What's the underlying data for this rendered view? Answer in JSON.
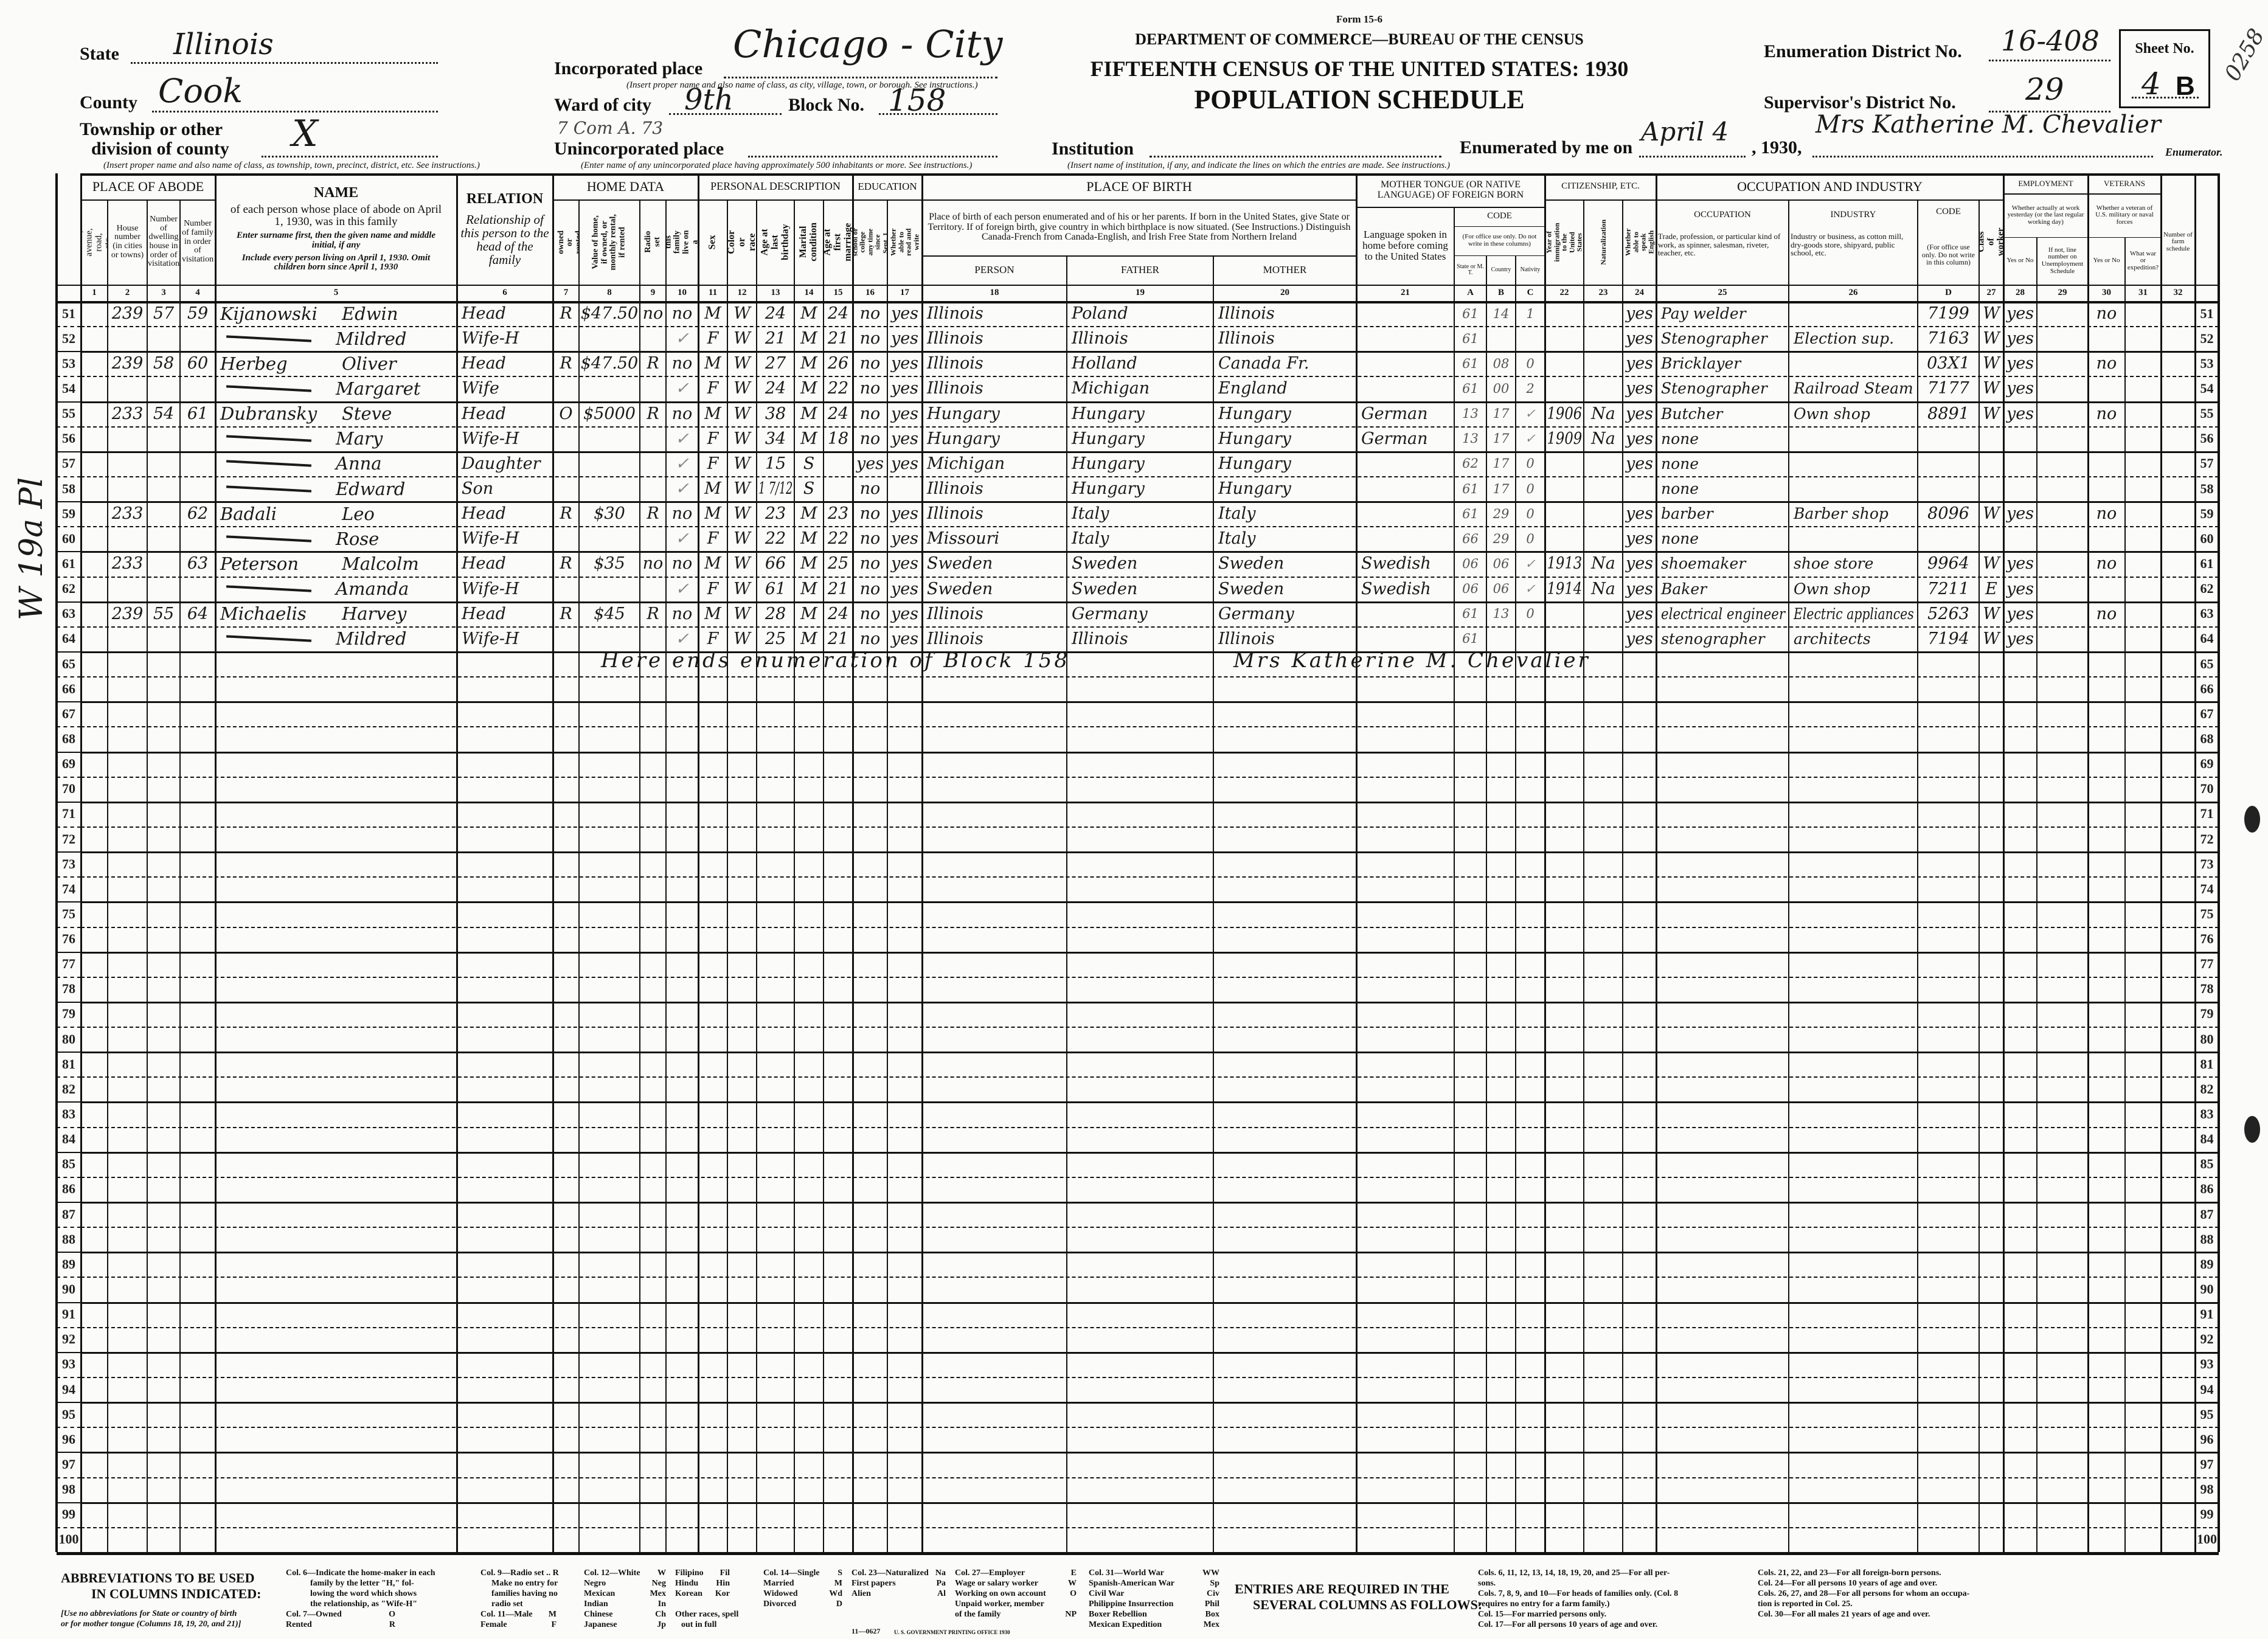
{
  "form": {
    "state_label": "State",
    "state": "Illinois",
    "county_label": "County",
    "county": "Cook",
    "township_label_1": "Township or other",
    "township_label_2": "division of county",
    "township": "X",
    "township_note": "(Insert proper name and also name of class, as township, town, precinct, district, etc. See instructions.)",
    "incorporated_label": "Incorporated place",
    "incorporated": "Chicago - City",
    "incorporated_note": "(Insert proper name and also name of class, as city, village, town, or borough. See instructions.)",
    "ward_label": "Ward of city",
    "ward": "9th",
    "block_label": "Block No.",
    "block": "158",
    "ward_annotation": "7 Com A. 73",
    "unincorporated_label": "Unincorporated place",
    "unincorporated_note": "(Enter name of any unincorporated place having approximately 500 inhabitants or more. See instructions.)",
    "institution_label": "Institution",
    "institution_note": "(Insert name of institution, if any, and indicate the lines on which the entries are made. See instructions.)",
    "form_no": "Form 15-6",
    "department": "DEPARTMENT OF COMMERCE—BUREAU OF THE CENSUS",
    "title": "FIFTEENTH CENSUS OF THE UNITED STATES: 1930",
    "subtitle": "POPULATION SCHEDULE",
    "ed_label": "Enumeration District No.",
    "ed": "16-408",
    "sd_label": "Supervisor's District No.",
    "sd": "29",
    "sheet_label": "Sheet No.",
    "sheet": "4",
    "sheet_side": "B",
    "enumerated_label": "Enumerated by me on",
    "enumerated_date": "April 4",
    "enumerated_year": ", 1930,",
    "enumerator": "Mrs Katherine M. Chevalier",
    "enumerator_label": "Enumerator.",
    "stamp": "0258",
    "margin_note": "W 19a Pl"
  },
  "header": {
    "place_of_abode": "PLACE OF ABODE",
    "c1": "Street, avenue, road, etc.",
    "c2": "House number (in cities or towns)",
    "c3": "Number of dwelling house in order of visitation",
    "c4": "Number of family in order of visitation",
    "name_title": "NAME",
    "name_desc": "of each person whose place of abode on April 1, 1930, was in this family",
    "name_note1": "Enter surname first, then the given name and middle initial, if any",
    "name_note2": "Include every person living on April 1, 1930. Omit children born since April 1, 1930",
    "relation_title": "RELATION",
    "relation_desc": "Relationship of this person to the head of the family",
    "home_data": "HOME DATA",
    "c7": "Home owned or rented",
    "c8": "Value of home, if owned, or monthly rental, if rented",
    "c9": "Radio set",
    "c10": "Does this family live on a farm?",
    "personal_description": "PERSONAL DESCRIPTION",
    "c11": "Sex",
    "c12": "Color or race",
    "c13": "Age at last birthday",
    "c14": "Marital condition",
    "c15": "Age at first marriage",
    "education": "EDUCATION",
    "c16": "Attended school or college any time since Sept. 1, 1929",
    "c17": "Whether able to read and write",
    "place_of_birth": "PLACE OF BIRTH",
    "pob_desc": "Place of birth of each person enumerated and of his or her parents. If born in the United States, give State or Territory. If of foreign birth, give country in which birthplace is now situated. (See Instructions.) Distinguish Canada-French from Canada-English, and Irish Free State from Northern Ireland",
    "person": "PERSON",
    "father": "FATHER",
    "mother": "MOTHER",
    "mother_tongue": "MOTHER TONGUE (OR NATIVE LANGUAGE) OF FOREIGN BORN",
    "c21": "Language spoken in home before coming to the United States",
    "code": "CODE",
    "code_note": "(For office use only. Do not write in these columns)",
    "A": "State or M. T.",
    "B": "Country",
    "C": "Nativity",
    "citizenship": "CITIZENSHIP, ETC.",
    "c22": "Year of immigration to the United States",
    "c23": "Naturalization",
    "c24": "Whether able to speak English",
    "occupation_industry": "OCCUPATION AND INDUSTRY",
    "c25_title": "OCCUPATION",
    "c25": "Trade, profession, or particular kind of work, as spinner, salesman, riveter, teacher, etc.",
    "c26_title": "INDUSTRY",
    "c26": "Industry or business, as cotton mill, dry-goods store, shipyard, public school, etc.",
    "D_title": "CODE",
    "D": "(For office use only. Do not write in this column)",
    "c27": "Class of worker",
    "employment": "EMPLOYMENT",
    "employment_desc": "Whether actually at work yesterday (or the last regular working day)",
    "c28": "Yes or No",
    "c29": "If not, line number on Unemployment Schedule",
    "veterans": "VETERANS",
    "veterans_desc": "Whether a veteran of U.S. military or naval forces",
    "c30": "Yes or No",
    "c31": "What war or expedition?",
    "c32": "Number of farm schedule",
    "col_numbers": {
      "c1": "1",
      "c2": "2",
      "c3": "3",
      "c4": "4",
      "c5": "5",
      "c6": "6",
      "c7": "7",
      "c8": "8",
      "c9": "9",
      "c10": "10",
      "c11": "11",
      "c12": "12",
      "c13": "13",
      "c14": "14",
      "c15": "15",
      "c16": "16",
      "c17": "17",
      "c18": "18",
      "c19": "19",
      "c20": "20",
      "c21": "21",
      "A": "A",
      "B": "B",
      "C": "C",
      "c22": "22",
      "c23": "23",
      "c24": "24",
      "c25": "25",
      "c26": "26",
      "D": "D",
      "c27": "27",
      "c28": "28",
      "c29": "29",
      "c30": "30",
      "c31": "31",
      "c32": "32"
    }
  },
  "line_numbers": [
    "51",
    "52",
    "53",
    "54",
    "55",
    "56",
    "57",
    "58",
    "59",
    "60",
    "61",
    "62",
    "63",
    "64",
    "65",
    "66",
    "67",
    "68",
    "69",
    "70",
    "71",
    "72",
    "73",
    "74",
    "75",
    "76",
    "77",
    "78",
    "79",
    "80",
    "81",
    "82",
    "83",
    "84",
    "85",
    "86",
    "87",
    "88",
    "89",
    "90",
    "91",
    "92",
    "93",
    "94",
    "95",
    "96",
    "97",
    "98",
    "99",
    "100"
  ],
  "rows": [
    {
      "c2": "239",
      "c3": "57",
      "c4": "59",
      "surname": "Kijanowski",
      "given": "Edwin",
      "c6": "Head",
      "c7": "R",
      "c8": "$47.50",
      "c9": "no",
      "c10": "no",
      "c11": "M",
      "c12": "W",
      "c13": "24",
      "c14": "M",
      "c15": "24",
      "c16": "no",
      "c17": "yes",
      "c18": "Illinois",
      "c19": "Poland",
      "c20": "Illinois",
      "A": "61",
      "B": "14",
      "C": "1",
      "c24": "yes",
      "c25": "Pay welder",
      "D": "7199",
      "c27": "W",
      "c28": "yes",
      "c30": "no"
    },
    {
      "surname": "",
      "given": "Mildred",
      "c6": "Wife-H",
      "c10": "✓",
      "c11": "F",
      "c12": "W",
      "c13": "21",
      "c14": "M",
      "c15": "21",
      "c16": "no",
      "c17": "yes",
      "c18": "Illinois",
      "c19": "Illinois",
      "c20": "Illinois",
      "A": "61",
      "c24": "yes",
      "c25": "Stenographer",
      "c26": "Election sup.",
      "D": "7163",
      "c27": "W",
      "c28": "yes"
    },
    {
      "c2": "239",
      "c3": "58",
      "c4": "60",
      "surname": "Herbeg",
      "given": "Oliver",
      "c6": "Head",
      "c7": "R",
      "c8": "$47.50",
      "c9": "R",
      "c10": "no",
      "c11": "M",
      "c12": "W",
      "c13": "27",
      "c14": "M",
      "c15": "26",
      "c16": "no",
      "c17": "yes",
      "c18": "Illinois",
      "c19": "Holland",
      "c20": "Canada Fr.",
      "A": "61",
      "B": "08",
      "C": "0",
      "c24": "yes",
      "c25": "Bricklayer",
      "D": "03X1",
      "c27": "W",
      "c28": "yes",
      "c30": "no"
    },
    {
      "surname": "",
      "given": "Margaret",
      "c6": "Wife",
      "c10": "✓",
      "c11": "F",
      "c12": "W",
      "c13": "24",
      "c14": "M",
      "c15": "22",
      "c16": "no",
      "c17": "yes",
      "c18": "Illinois",
      "c19": "Michigan",
      "c20": "England",
      "A": "61",
      "B": "00",
      "C": "2",
      "c24": "yes",
      "c25": "Stenographer",
      "c26": "Railroad Steam",
      "D": "7177",
      "c27": "W",
      "c28": "yes"
    },
    {
      "c2": "233",
      "c3": "54",
      "c4": "61",
      "surname": "Dubransky",
      "given": "Steve",
      "c6": "Head",
      "c7": "O",
      "c8": "$5000",
      "c9": "R",
      "c10": "no",
      "c11": "M",
      "c12": "W",
      "c13": "38",
      "c14": "M",
      "c15": "24",
      "c16": "no",
      "c17": "yes",
      "c18": "Hungary",
      "c19": "Hungary",
      "c20": "Hungary",
      "c21": "German",
      "A": "13",
      "B": "17",
      "C": "✓",
      "c22": "1906",
      "c23": "Na",
      "c24": "yes",
      "c25": "Butcher",
      "c26": "Own shop",
      "D": "8891",
      "c27": "W",
      "c28": "yes",
      "c30": "no"
    },
    {
      "surname": "",
      "given": "Mary",
      "c6": "Wife-H",
      "c10": "✓",
      "c11": "F",
      "c12": "W",
      "c13": "34",
      "c14": "M",
      "c15": "18",
      "c16": "no",
      "c17": "yes",
      "c18": "Hungary",
      "c19": "Hungary",
      "c20": "Hungary",
      "c21": "German",
      "A": "13",
      "B": "17",
      "C": "✓",
      "c22": "1909",
      "c23": "Na",
      "c24": "yes",
      "c25": "none"
    },
    {
      "surname": "",
      "given": "Anna",
      "c6": "Daughter",
      "c10": "✓",
      "c11": "F",
      "c12": "W",
      "c13": "15",
      "c14": "S",
      "c16": "yes",
      "c17": "yes",
      "c18": "Michigan",
      "c19": "Hungary",
      "c20": "Hungary",
      "A": "62",
      "B": "17",
      "C": "0",
      "c24": "yes",
      "c25": "none"
    },
    {
      "surname": "",
      "given": "Edward",
      "c6": "Son",
      "c10": "✓",
      "c11": "M",
      "c12": "W",
      "c13": "1 7/12",
      "c14": "S",
      "c16": "no",
      "c18": "Illinois",
      "c19": "Hungary",
      "c20": "Hungary",
      "A": "61",
      "B": "17",
      "C": "0",
      "c25": "none"
    },
    {
      "c2": "233",
      "c4": "62",
      "surname": "Badali",
      "given": "Leo",
      "c6": "Head",
      "c7": "R",
      "c8": "$30",
      "c9": "R",
      "c10": "no",
      "c11": "M",
      "c12": "W",
      "c13": "23",
      "c14": "M",
      "c15": "23",
      "c16": "no",
      "c17": "yes",
      "c18": "Illinois",
      "c19": "Italy",
      "c20": "Italy",
      "A": "61",
      "B": "29",
      "C": "0",
      "c24": "yes",
      "c25": "barber",
      "c26": "Barber shop",
      "D": "8096",
      "c27": "W",
      "c28": "yes",
      "c30": "no"
    },
    {
      "surname": "",
      "given": "Rose",
      "c6": "Wife-H",
      "c10": "✓",
      "c11": "F",
      "c12": "W",
      "c13": "22",
      "c14": "M",
      "c15": "22",
      "c16": "no",
      "c17": "yes",
      "c18": "Missouri",
      "c19": "Italy",
      "c20": "Italy",
      "A": "66",
      "B": "29",
      "C": "0",
      "c24": "yes",
      "c25": "none"
    },
    {
      "c2": "233",
      "c4": "63",
      "surname": "Peterson",
      "given": "Malcolm",
      "c6": "Head",
      "c7": "R",
      "c8": "$35",
      "c9": "no",
      "c10": "no",
      "c11": "M",
      "c12": "W",
      "c13": "66",
      "c14": "M",
      "c15": "25",
      "c16": "no",
      "c17": "yes",
      "c18": "Sweden",
      "c19": "Sweden",
      "c20": "Sweden",
      "c21": "Swedish",
      "A": "06",
      "B": "06",
      "C": "✓",
      "c22": "1913",
      "c23": "Na",
      "c24": "yes",
      "c25": "shoemaker",
      "c26": "shoe store",
      "D": "9964",
      "c27": "W",
      "c28": "yes",
      "c30": "no"
    },
    {
      "surname": "",
      "given": "Amanda",
      "c6": "Wife-H",
      "c10": "✓",
      "c11": "F",
      "c12": "W",
      "c13": "61",
      "c14": "M",
      "c15": "21",
      "c16": "no",
      "c17": "yes",
      "c18": "Sweden",
      "c19": "Sweden",
      "c20": "Sweden",
      "c21": "Swedish",
      "A": "06",
      "B": "06",
      "C": "✓",
      "c22": "1914",
      "c23": "Na",
      "c24": "yes",
      "c25": "Baker",
      "c26": "Own shop",
      "D": "7211",
      "c27": "E",
      "c28": "yes"
    },
    {
      "c2": "239",
      "c3": "55",
      "c4": "64",
      "surname": "Michaelis",
      "given": "Harvey",
      "c6": "Head",
      "c7": "R",
      "c8": "$45",
      "c9": "R",
      "c10": "no",
      "c11": "M",
      "c12": "W",
      "c13": "28",
      "c14": "M",
      "c15": "24",
      "c16": "no",
      "c17": "yes",
      "c18": "Illinois",
      "c19": "Germany",
      "c20": "Germany",
      "A": "61",
      "B": "13",
      "C": "0",
      "c24": "yes",
      "c25": "electrical engineer",
      "c26": "Electric appliances",
      "D": "5263",
      "c27": "W",
      "c28": "yes",
      "c30": "no"
    },
    {
      "surname": "",
      "given": "Mildred",
      "c6": "Wife-H",
      "c10": "✓",
      "c11": "F",
      "c12": "W",
      "c13": "25",
      "c14": "M",
      "c15": "21",
      "c16": "no",
      "c17": "yes",
      "c18": "Illinois",
      "c19": "Illinois",
      "c20": "Illinois",
      "A": "61",
      "c24": "yes",
      "c25": "stenographer",
      "c26": "architects",
      "D": "7194",
      "c27": "W",
      "c28": "yes"
    }
  ],
  "closing_note": {
    "text": "Here ends enumeration of Block 158",
    "signature": "Mrs Katherine M. Chevalier"
  },
  "footer": {
    "abbr_title_1": "ABBREVIATIONS TO BE USED",
    "abbr_title_2": "IN COLUMNS INDICATED:",
    "abbr_note_1": "[Use no abbreviations for State or country of birth",
    "abbr_note_2": "or for mother tongue (Columns 18, 19, 20, and 21)]",
    "col6": [
      "Col. 6—Indicate the home-maker in each",
      "family by the letter \"H,\" fol-",
      "lowing the word which shows",
      "the relationship, as \"Wife-H\""
    ],
    "col7": [
      [
        "Col. 7—Owned",
        "O"
      ],
      [
        "Rented",
        "R"
      ]
    ],
    "col9": [
      "Col. 9—Radio set .. R",
      "Make no entry for",
      "families having no",
      "radio set"
    ],
    "col11": [
      [
        "Col. 11—Male",
        "M"
      ],
      [
        "Female",
        "F"
      ]
    ],
    "col12": [
      [
        "Col. 12—White",
        "W"
      ],
      [
        "Negro",
        "Neg"
      ],
      [
        "Mexican",
        "Mex"
      ],
      [
        "Indian",
        "In"
      ],
      [
        "Chinese",
        "Ch"
      ],
      [
        "Japanese",
        "Jp"
      ]
    ],
    "col12b": [
      [
        "Filipino",
        "Fil"
      ],
      [
        "Hindu",
        "Hin"
      ],
      [
        "Korean",
        "Kor"
      ]
    ],
    "other_races": [
      "Other races, spell",
      "out in full"
    ],
    "col14": [
      [
        "Col. 14—Single",
        "S"
      ],
      [
        "Married",
        "M"
      ],
      [
        "Widowed",
        "Wd"
      ],
      [
        "Divorced",
        "D"
      ]
    ],
    "col23": [
      [
        "Col. 23—Naturalized",
        "Na"
      ],
      [
        "First papers",
        "Pa"
      ],
      [
        "Alien",
        "Al"
      ]
    ],
    "col27": [
      [
        "Col. 27—Employer",
        "E"
      ],
      [
        "Wage or salary worker",
        "W"
      ],
      [
        "Working on own account",
        "O"
      ],
      [
        "Unpaid worker, member",
        ""
      ],
      [
        "of the family",
        "NP"
      ]
    ],
    "col31": [
      [
        "Col. 31—World War",
        "WW"
      ],
      [
        "Spanish-American War",
        "Sp"
      ],
      [
        "Civil War",
        "Civ"
      ],
      [
        "Philippine Insurrection",
        "Phil"
      ],
      [
        "Boxer Rebellion",
        "Box"
      ],
      [
        "Mexican Expedition",
        "Mex"
      ]
    ],
    "entries_title_1": "ENTRIES ARE REQUIRED IN THE",
    "entries_title_2": "SEVERAL COLUMNS AS FOLLOWS:",
    "entries_1": [
      "Cols. 6, 11, 12, 13, 14, 18, 19, 20, and 25—For all per-",
      "sons.",
      "Cols. 7, 8, 9, and 10—For heads of families only. (Col. 8",
      "requires no entry for a farm family.)",
      "Col. 15—For married persons only.",
      "Col. 17—For all persons 10 years of age and over."
    ],
    "entries_2": [
      "Cols. 21, 22, and 23—For all foreign-born persons.",
      "Col. 24—For all persons 10 years of age and over.",
      "Cols. 26, 27, and 28—For all persons for whom an occupa-",
      "tion is reported in Col. 25.",
      "Col. 30—For all males 21 years of age and over."
    ],
    "print_code": "11—0627",
    "printer": "U. S. GOVERNMENT PRINTING OFFICE 1930"
  }
}
